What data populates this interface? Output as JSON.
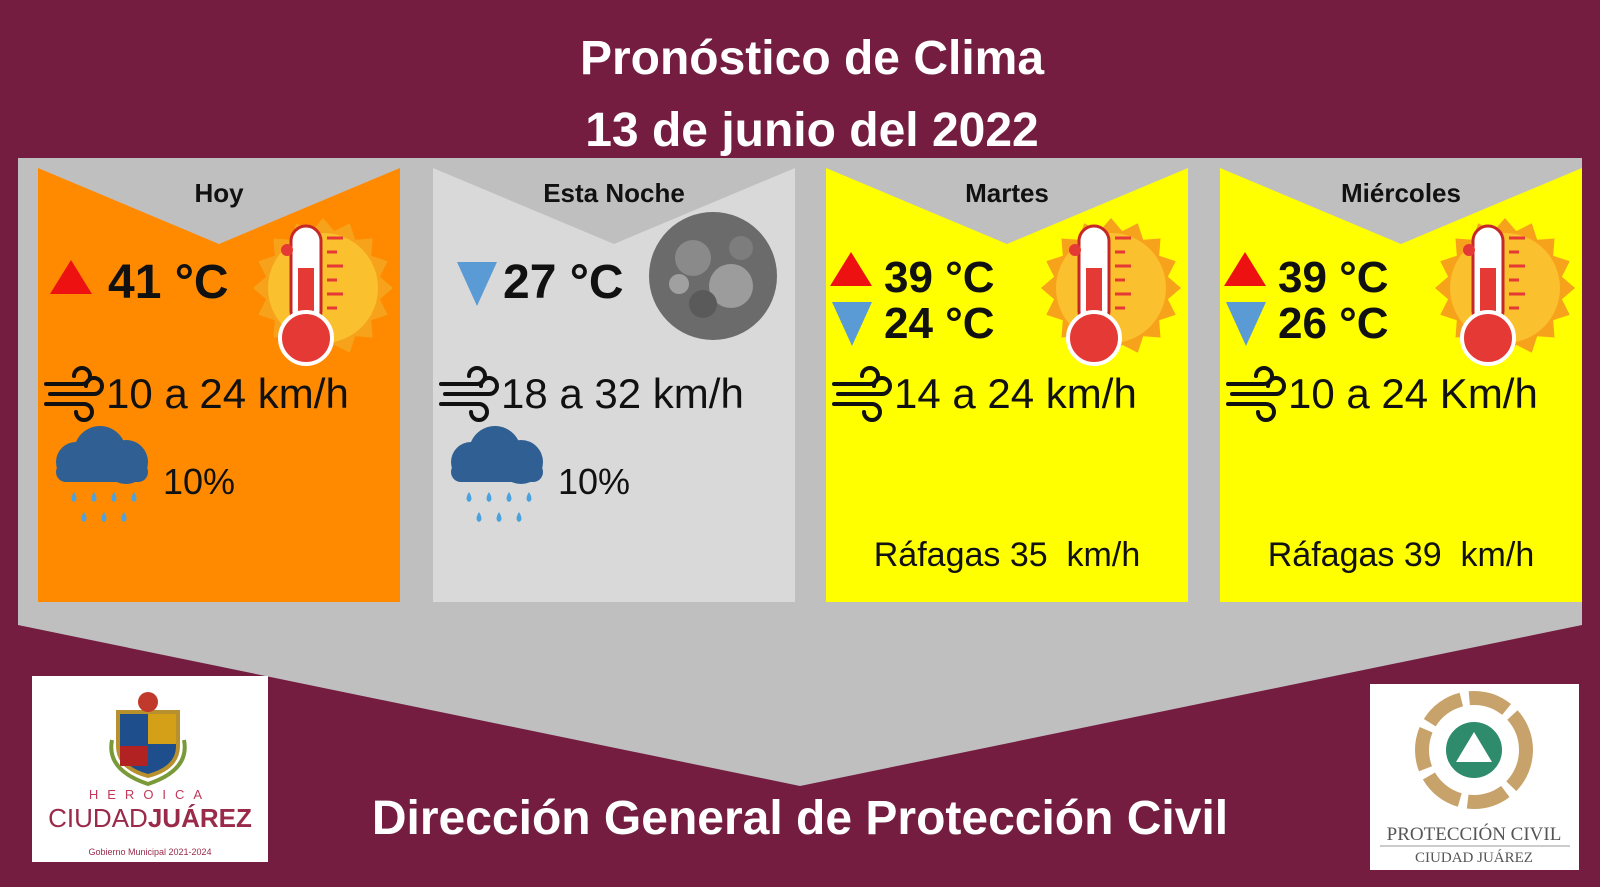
{
  "header": {
    "title": "Pronóstico de Clima",
    "subtitle": "13 de junio del 2022"
  },
  "cards": [
    {
      "day": "Hoy",
      "color": "#ff8a00",
      "high": "41 °C",
      "wind": "10 a 24 km/h",
      "rain": "10%"
    },
    {
      "day": "Esta Noche",
      "color": "#d9d9d9",
      "low": "27 °C",
      "wind": "18 a 32 km/h",
      "rain": "10%"
    },
    {
      "day": "Martes",
      "color": "#ffff00",
      "high": "39 °C",
      "low": "24 °C",
      "wind": "14 a 24 km/h",
      "gusts": "Ráfagas 35  km/h"
    },
    {
      "day": "Miércoles",
      "color": "#ffff00",
      "high": "39 °C",
      "low": "26 °C",
      "wind": "10 a 24 Km/h",
      "gusts": "Ráfagas 39  km/h"
    }
  ],
  "footer": {
    "title": "Dirección General de Protección Civil"
  },
  "logos": {
    "left": {
      "line1": "HEROICA",
      "line2a": "CIUDAD",
      "line2b": "JUÁREZ",
      "line3": "Gobierno Municipal 2021-2024"
    },
    "right": {
      "line1": "PROTECCIÓN CIVIL",
      "line2": "CIUDAD JUÁREZ"
    }
  }
}
